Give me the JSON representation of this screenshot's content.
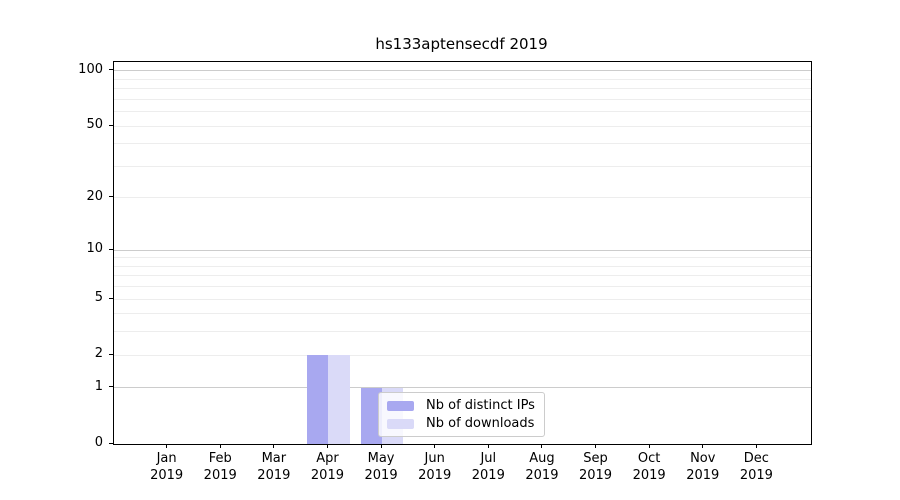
{
  "chart_data": {
    "type": "bar",
    "title": "hs133aptensecdf 2019",
    "categories": [
      "Jan 2019",
      "Feb 2019",
      "Mar 2019",
      "Apr 2019",
      "May 2019",
      "Jun 2019",
      "Jul 2019",
      "Aug 2019",
      "Sep 2019",
      "Oct 2019",
      "Nov 2019",
      "Dec 2019"
    ],
    "series": [
      {
        "name": "Nb of distinct IPs",
        "color": "#a8a8f0",
        "values": [
          0,
          0,
          0,
          2,
          1,
          0,
          0,
          0,
          0,
          0,
          0,
          0
        ]
      },
      {
        "name": "Nb of downloads",
        "color": "#dadaf8",
        "values": [
          0,
          0,
          0,
          2,
          1,
          0,
          0,
          0,
          0,
          0,
          0,
          0
        ]
      }
    ],
    "y_axis": {
      "scale": "log10(1+y)",
      "ticks": [
        0,
        1,
        2,
        5,
        10,
        20,
        50,
        100
      ],
      "major_gridlines": [
        1,
        10,
        100
      ],
      "minor_gridlines": [
        2,
        3,
        4,
        5,
        6,
        7,
        8,
        9,
        20,
        30,
        40,
        50,
        60,
        70,
        80,
        90
      ],
      "ylim": [
        0,
        112
      ]
    },
    "legend": {
      "position": "inside-bottom-center",
      "entries": [
        "Nb of distinct IPs",
        "Nb of downloads"
      ]
    },
    "colors": {
      "major_grid": "#cccccc",
      "minor_grid": "#ededed",
      "axis": "#000000",
      "background": "#ffffff"
    }
  }
}
